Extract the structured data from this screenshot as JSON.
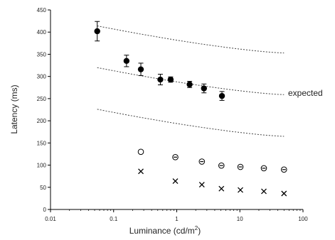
{
  "chart_data": {
    "type": "scatter",
    "xlabel": "Luminance (cd/m",
    "xlabel_sup": "2",
    "xlabel_end": ")",
    "ylabel": "Latency (ms)",
    "xscale": "log",
    "xlim": [
      0.01,
      100
    ],
    "ylim": [
      0,
      450
    ],
    "x_ticks": [
      0.01,
      0.1,
      1,
      10,
      100
    ],
    "x_tick_labels": [
      "0.01",
      "0.1",
      "1",
      "10",
      "100"
    ],
    "y_ticks": [
      0,
      50,
      100,
      150,
      200,
      250,
      300,
      350,
      400,
      450
    ],
    "y_tick_labels": [
      "0",
      "50",
      "100",
      "150",
      "200",
      "250",
      "300",
      "350",
      "400",
      "450"
    ],
    "grid": false,
    "annotation": "expected",
    "series": [
      {
        "marker": "filled-circle",
        "x": [
          0.055,
          0.16,
          0.27,
          0.55,
          0.8,
          1.6,
          2.7,
          5.2
        ],
        "y": [
          402,
          335,
          316,
          293,
          293,
          282,
          273,
          256
        ],
        "err": [
          22,
          13,
          14,
          12,
          6,
          7,
          10,
          10
        ]
      },
      {
        "marker": "open-circle",
        "x": [
          0.27,
          0.95,
          2.5,
          5.1,
          10.2,
          24,
          50
        ],
        "y": [
          130,
          118,
          108,
          99,
          96,
          93,
          90
        ]
      },
      {
        "marker": "cross",
        "x": [
          0.27,
          0.95,
          2.5,
          5.1,
          10.2,
          24,
          50
        ],
        "y": [
          86,
          64,
          56,
          47,
          44,
          41,
          36
        ]
      }
    ],
    "dashed_lines": [
      {
        "x": [
          0.055,
          50
        ],
        "y": [
          414,
          353
        ]
      },
      {
        "x": [
          0.055,
          50
        ],
        "y": [
          320,
          259
        ]
      },
      {
        "x": [
          0.055,
          50
        ],
        "y": [
          226,
          165
        ]
      }
    ]
  }
}
